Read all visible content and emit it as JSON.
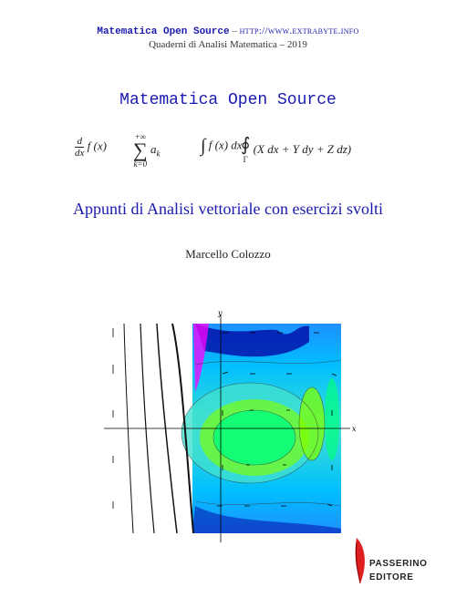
{
  "header": {
    "brand": "Matematica Open Source",
    "separator": "–",
    "url": "http://www.extrabyte.info",
    "subtitle": "Quaderni di Analisi Matematica – 2019"
  },
  "series_title": "Matematica Open Source",
  "formulas": {
    "derivative_num": "d",
    "derivative_den": "dx",
    "derivative_fn": "f (x)",
    "sum_upper": "+∞",
    "sum_lower": "k=0",
    "sum_term": "a",
    "sum_sub": "k",
    "integral_body": "f (x) dx",
    "line_integral_sub": "Γ",
    "line_integral_body": "(X dx + Y dy + Z dz)"
  },
  "book_title": "Appunti di Analisi vettoriale con esercizi svolti",
  "author": "Marcello Colozzo",
  "plot": {
    "x_axis_label": "x",
    "y_axis_label": "y",
    "palette": [
      "#000080",
      "#1e90ff",
      "#00bfff",
      "#40e0d0",
      "#7fff00",
      "#00ff7f",
      "#ff00ff"
    ]
  },
  "publisher": {
    "line1": "PASSERINO",
    "line2": "EDITORE",
    "accent_color": "#e02020"
  }
}
